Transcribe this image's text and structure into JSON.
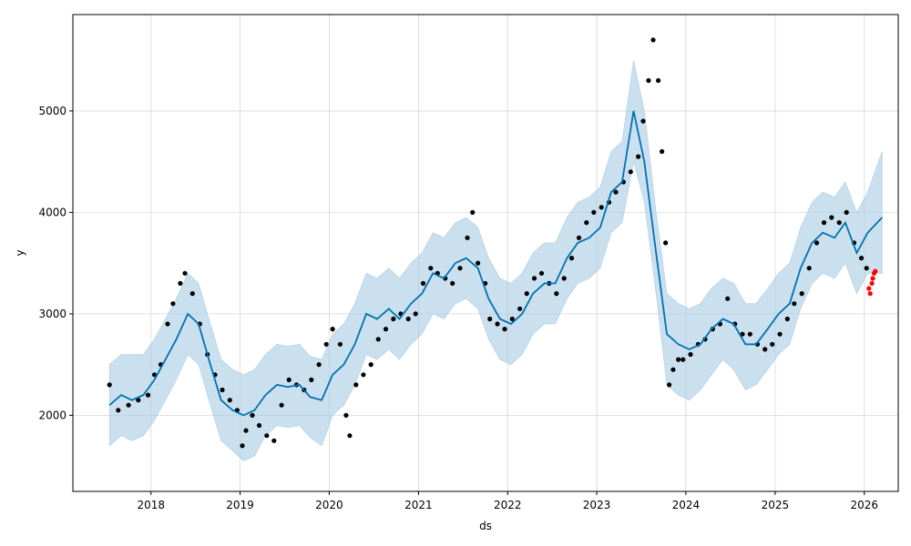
{
  "chart_data": {
    "type": "line",
    "title": "",
    "xlabel": "ds",
    "ylabel": "y",
    "grid": true,
    "xlim": [
      "2017-02-15",
      "2026-05-20"
    ],
    "ylim": [
      1250,
      5950
    ],
    "x_ticks": [
      "2018",
      "2019",
      "2020",
      "2021",
      "2022",
      "2023",
      "2024",
      "2025",
      "2026"
    ],
    "y_ticks": [
      "2000",
      "3000",
      "4000",
      "5000"
    ],
    "y_tick_values": [
      2000,
      3000,
      4000,
      5000
    ],
    "colors": {
      "observed": "#000000",
      "forecast": "#0072B2",
      "interval": "#a9cce3",
      "holdout": "#ff0000"
    },
    "series": [
      {
        "role": "forecast",
        "x": [
          "2017-07-15",
          "2017-09-01",
          "2017-10-15",
          "2017-12-01",
          "2018-01-15",
          "2018-03-01",
          "2018-04-15",
          "2018-06-01",
          "2018-07-15",
          "2018-09-01",
          "2018-10-15",
          "2018-12-01",
          "2019-01-15",
          "2019-03-01",
          "2019-04-15",
          "2019-06-01",
          "2019-07-15",
          "2019-09-01",
          "2019-10-15",
          "2019-12-01",
          "2020-01-15",
          "2020-03-01",
          "2020-04-15",
          "2020-06-01",
          "2020-07-15",
          "2020-09-01",
          "2020-10-15",
          "2020-12-01",
          "2021-01-15",
          "2021-03-01",
          "2021-04-15",
          "2021-06-01",
          "2021-07-15",
          "2021-09-01",
          "2021-10-15",
          "2021-12-01",
          "2022-01-15",
          "2022-03-01",
          "2022-04-15",
          "2022-06-01",
          "2022-07-15",
          "2022-09-01",
          "2022-10-15",
          "2022-12-01",
          "2023-01-15",
          "2023-03-01",
          "2023-04-15",
          "2023-06-01",
          "2023-07-15",
          "2023-09-01",
          "2023-10-15",
          "2023-12-01",
          "2024-01-15",
          "2024-03-01",
          "2024-04-15",
          "2024-06-01",
          "2024-07-15",
          "2024-09-01",
          "2024-10-15",
          "2024-12-01",
          "2025-01-15",
          "2025-03-01",
          "2025-04-15",
          "2025-06-01",
          "2025-07-15",
          "2025-09-01",
          "2025-10-15",
          "2025-12-01",
          "2026-01-15",
          "2026-03-15"
        ],
        "values": [
          2100,
          2200,
          2150,
          2200,
          2350,
          2550,
          2750,
          3000,
          2900,
          2500,
          2150,
          2050,
          2000,
          2050,
          2200,
          2300,
          2280,
          2300,
          2180,
          2150,
          2400,
          2500,
          2700,
          3000,
          2950,
          3050,
          2950,
          3100,
          3200,
          3400,
          3350,
          3500,
          3550,
          3450,
          3150,
          2950,
          2900,
          3000,
          3200,
          3300,
          3300,
          3550,
          3700,
          3750,
          3850,
          4200,
          4300,
          5000,
          4500,
          3600,
          2800,
          2700,
          2650,
          2700,
          2850,
          2950,
          2900,
          2700,
          2700,
          2850,
          3000,
          3100,
          3450,
          3700,
          3800,
          3750,
          3900,
          3600,
          3800,
          3950
        ]
      },
      {
        "role": "uncertainty_upper",
        "x": [
          "2017-07-15",
          "2017-09-01",
          "2017-10-15",
          "2017-12-01",
          "2018-01-15",
          "2018-03-01",
          "2018-04-15",
          "2018-06-01",
          "2018-07-15",
          "2018-09-01",
          "2018-10-15",
          "2018-12-01",
          "2019-01-15",
          "2019-03-01",
          "2019-04-15",
          "2019-06-01",
          "2019-07-15",
          "2019-09-01",
          "2019-10-15",
          "2019-12-01",
          "2020-01-15",
          "2020-03-01",
          "2020-04-15",
          "2020-06-01",
          "2020-07-15",
          "2020-09-01",
          "2020-10-15",
          "2020-12-01",
          "2021-01-15",
          "2021-03-01",
          "2021-04-15",
          "2021-06-01",
          "2021-07-15",
          "2021-09-01",
          "2021-10-15",
          "2021-12-01",
          "2022-01-15",
          "2022-03-01",
          "2022-04-15",
          "2022-06-01",
          "2022-07-15",
          "2022-09-01",
          "2022-10-15",
          "2022-12-01",
          "2023-01-15",
          "2023-03-01",
          "2023-04-15",
          "2023-06-01",
          "2023-07-15",
          "2023-09-01",
          "2023-10-15",
          "2023-12-01",
          "2024-01-15",
          "2024-03-01",
          "2024-04-15",
          "2024-06-01",
          "2024-07-15",
          "2024-09-01",
          "2024-10-15",
          "2024-12-01",
          "2025-01-15",
          "2025-03-01",
          "2025-04-15",
          "2025-06-01",
          "2025-07-15",
          "2025-09-01",
          "2025-10-15",
          "2025-12-01",
          "2026-01-15",
          "2026-03-15"
        ],
        "values": [
          2500,
          2600,
          2600,
          2600,
          2750,
          2950,
          3150,
          3400,
          3300,
          2900,
          2550,
          2450,
          2400,
          2450,
          2600,
          2700,
          2680,
          2700,
          2580,
          2550,
          2800,
          2900,
          3100,
          3400,
          3350,
          3450,
          3350,
          3500,
          3600,
          3800,
          3750,
          3900,
          3950,
          3850,
          3550,
          3350,
          3300,
          3400,
          3600,
          3700,
          3700,
          3950,
          4100,
          4150,
          4250,
          4600,
          4700,
          5500,
          5000,
          4000,
          3200,
          3100,
          3050,
          3100,
          3250,
          3350,
          3300,
          3100,
          3100,
          3250,
          3400,
          3500,
          3850,
          4100,
          4200,
          4150,
          4300,
          4000,
          4200,
          4600
        ]
      },
      {
        "role": "uncertainty_lower",
        "x": [
          "2017-07-15",
          "2017-09-01",
          "2017-10-15",
          "2017-12-01",
          "2018-01-15",
          "2018-03-01",
          "2018-04-15",
          "2018-06-01",
          "2018-07-15",
          "2018-09-01",
          "2018-10-15",
          "2018-12-01",
          "2019-01-15",
          "2019-03-01",
          "2019-04-15",
          "2019-06-01",
          "2019-07-15",
          "2019-09-01",
          "2019-10-15",
          "2019-12-01",
          "2020-01-15",
          "2020-03-01",
          "2020-04-15",
          "2020-06-01",
          "2020-07-15",
          "2020-09-01",
          "2020-10-15",
          "2020-12-01",
          "2021-01-15",
          "2021-03-01",
          "2021-04-15",
          "2021-06-01",
          "2021-07-15",
          "2021-09-01",
          "2021-10-15",
          "2021-12-01",
          "2022-01-15",
          "2022-03-01",
          "2022-04-15",
          "2022-06-01",
          "2022-07-15",
          "2022-09-01",
          "2022-10-15",
          "2022-12-01",
          "2023-01-15",
          "2023-03-01",
          "2023-04-15",
          "2023-06-01",
          "2023-07-15",
          "2023-09-01",
          "2023-10-15",
          "2023-12-01",
          "2024-01-15",
          "2024-03-01",
          "2024-04-15",
          "2024-06-01",
          "2024-07-15",
          "2024-09-01",
          "2024-10-15",
          "2024-12-01",
          "2025-01-15",
          "2025-03-01",
          "2025-04-15",
          "2025-06-01",
          "2025-07-15",
          "2025-09-01",
          "2025-10-15",
          "2025-12-01",
          "2026-01-15",
          "2026-03-15"
        ],
        "values": [
          1700,
          1800,
          1750,
          1800,
          1950,
          2150,
          2350,
          2600,
          2500,
          2100,
          1750,
          1650,
          1550,
          1600,
          1800,
          1900,
          1880,
          1900,
          1780,
          1700,
          2000,
          2100,
          2300,
          2600,
          2550,
          2650,
          2550,
          2700,
          2800,
          3000,
          2950,
          3100,
          3150,
          3050,
          2750,
          2550,
          2500,
          2600,
          2800,
          2900,
          2900,
          3150,
          3300,
          3350,
          3450,
          3800,
          3900,
          4500,
          4100,
          3200,
          2300,
          2200,
          2150,
          2250,
          2400,
          2550,
          2450,
          2250,
          2300,
          2450,
          2600,
          2700,
          3050,
          3300,
          3400,
          3350,
          3500,
          3200,
          3400,
          3400
        ]
      },
      {
        "role": "observed",
        "x": [
          "2017-07-15",
          "2017-08-20",
          "2017-10-01",
          "2017-11-10",
          "2017-12-20",
          "2018-01-15",
          "2018-02-10",
          "2018-03-10",
          "2018-04-01",
          "2018-05-01",
          "2018-05-20",
          "2018-06-20",
          "2018-07-20",
          "2018-08-20",
          "2018-09-20",
          "2018-10-20",
          "2018-11-20",
          "2018-12-20",
          "2019-01-10",
          "2019-01-25",
          "2019-02-20",
          "2019-03-20",
          "2019-04-20",
          "2019-05-20",
          "2019-06-20",
          "2019-07-20",
          "2019-08-20",
          "2019-09-20",
          "2019-10-20",
          "2019-11-20",
          "2019-12-20",
          "2020-01-15",
          "2020-02-15",
          "2020-03-10",
          "2020-03-25",
          "2020-04-20",
          "2020-05-20",
          "2020-06-20",
          "2020-07-20",
          "2020-08-20",
          "2020-09-20",
          "2020-10-20",
          "2020-11-20",
          "2020-12-20",
          "2021-01-20",
          "2021-02-20",
          "2021-03-20",
          "2021-04-20",
          "2021-05-20",
          "2021-06-20",
          "2021-07-20",
          "2021-08-10",
          "2021-09-01",
          "2021-10-01",
          "2021-10-20",
          "2021-11-20",
          "2021-12-20",
          "2022-01-20",
          "2022-02-20",
          "2022-03-20",
          "2022-04-20",
          "2022-05-20",
          "2022-06-20",
          "2022-07-20",
          "2022-08-20",
          "2022-09-20",
          "2022-10-20",
          "2022-11-20",
          "2022-12-20",
          "2023-01-20",
          "2023-02-20",
          "2023-03-20",
          "2023-04-20",
          "2023-05-20",
          "2023-06-20",
          "2023-07-10",
          "2023-08-01",
          "2023-08-20",
          "2023-09-10",
          "2023-09-25",
          "2023-10-10",
          "2023-10-25",
          "2023-11-10",
          "2023-12-01",
          "2023-12-20",
          "2024-01-20",
          "2024-02-20",
          "2024-03-20",
          "2024-04-20",
          "2024-05-20",
          "2024-06-20",
          "2024-07-20",
          "2024-08-20",
          "2024-09-20",
          "2024-10-20",
          "2024-11-20",
          "2024-12-20",
          "2025-01-20",
          "2025-02-20",
          "2025-03-20",
          "2025-04-20",
          "2025-05-20",
          "2025-06-20",
          "2025-07-20",
          "2025-08-20",
          "2025-09-20",
          "2025-10-20",
          "2025-11-20",
          "2025-12-20",
          "2026-01-10"
        ],
        "values": [
          2300,
          2050,
          2100,
          2150,
          2200,
          2400,
          2500,
          2900,
          3100,
          3300,
          3400,
          3200,
          2900,
          2600,
          2400,
          2250,
          2150,
          2050,
          1700,
          1850,
          2000,
          1900,
          1800,
          1750,
          2100,
          2350,
          2300,
          2250,
          2350,
          2500,
          2700,
          2850,
          2700,
          2000,
          1800,
          2300,
          2400,
          2500,
          2750,
          2850,
          2950,
          3000,
          2950,
          3000,
          3300,
          3450,
          3400,
          3350,
          3300,
          3450,
          3750,
          4000,
          3500,
          3300,
          2950,
          2900,
          2850,
          2950,
          3050,
          3200,
          3350,
          3400,
          3300,
          3200,
          3350,
          3550,
          3750,
          3900,
          4000,
          4050,
          4100,
          4200,
          4300,
          4400,
          4550,
          4900,
          5300,
          5700,
          5300,
          4600,
          3700,
          2300,
          2450,
          2550,
          2550,
          2600,
          2700,
          2750,
          2850,
          2900,
          3150,
          2900,
          2800,
          2800,
          2700,
          2650,
          2700,
          2800,
          2950,
          3100,
          3200,
          3450,
          3700,
          3900,
          3950,
          3900,
          4000,
          3700,
          3550,
          3450
        ]
      },
      {
        "role": "holdout",
        "x": [
          "2026-01-20",
          "2026-01-25",
          "2026-02-01",
          "2026-02-05",
          "2026-02-10",
          "2026-02-15"
        ],
        "values": [
          3250,
          3200,
          3300,
          3350,
          3400,
          3420
        ]
      }
    ]
  }
}
